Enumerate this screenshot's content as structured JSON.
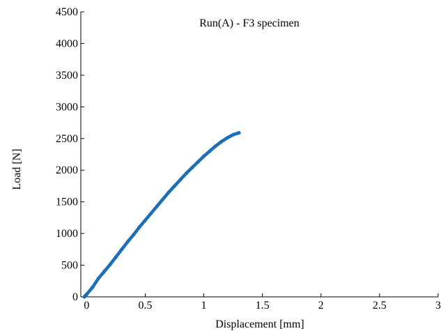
{
  "chart_data": {
    "type": "scatter",
    "title": "Run(A) - F3 specimen",
    "xlabel": "Displacement [mm]",
    "ylabel": "Load [N]",
    "xlim": [
      -0.05,
      3
    ],
    "ylim": [
      0,
      4500
    ],
    "xticks": [
      0,
      0.5,
      1,
      1.5,
      2,
      2.5,
      3
    ],
    "xtick_labels": [
      "0",
      "0.5",
      "1",
      "1.5",
      "2",
      "2.5",
      "3"
    ],
    "yticks": [
      0,
      500,
      1000,
      1500,
      2000,
      2500,
      3000,
      3500,
      4000,
      4500
    ],
    "ytick_labels": [
      "0",
      "500",
      "1000",
      "1500",
      "2000",
      "2500",
      "3000",
      "3500",
      "4000",
      "4500"
    ],
    "grid": false,
    "box": "left-bottom",
    "series": [
      {
        "color": "#1f6fb5",
        "marker": "dot",
        "x": [
          -0.02,
          0.0,
          0.05,
          0.1,
          0.15,
          0.2,
          0.25,
          0.3,
          0.35,
          0.4,
          0.45,
          0.5,
          0.55,
          0.6,
          0.65,
          0.7,
          0.75,
          0.8,
          0.85,
          0.9,
          0.95,
          1.0,
          1.05,
          1.1,
          1.15,
          1.2,
          1.25,
          1.3
        ],
        "y": [
          0,
          40,
          150,
          290,
          400,
          510,
          630,
          750,
          870,
          980,
          1100,
          1210,
          1320,
          1430,
          1540,
          1650,
          1750,
          1850,
          1950,
          2040,
          2130,
          2220,
          2300,
          2380,
          2450,
          2510,
          2560,
          2590
        ]
      }
    ]
  }
}
